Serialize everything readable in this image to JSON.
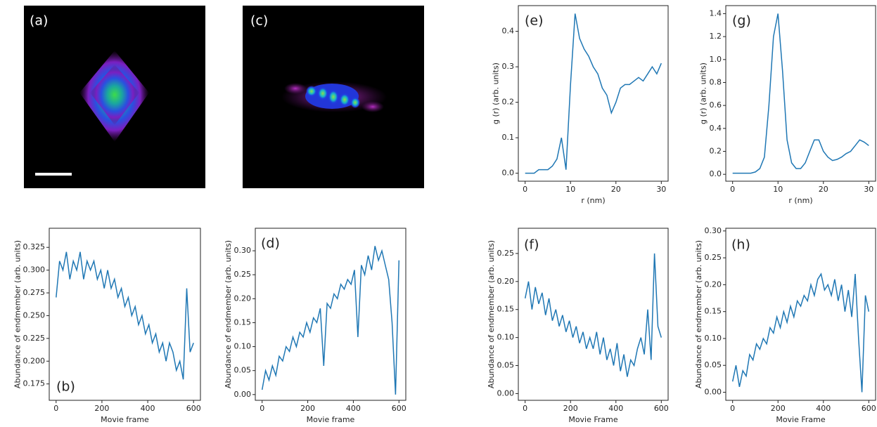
{
  "chart_data": [
    {
      "type": "image",
      "label": "(a)"
    },
    {
      "type": "image",
      "label": "(c)"
    },
    {
      "type": "line",
      "label": "(e)",
      "xlabel": "r (nm)",
      "ylabel": "g (r) (arb. units)",
      "color": "#1f77b4",
      "x": [
        0,
        1,
        2,
        3,
        4,
        5,
        6,
        7,
        8,
        9,
        10,
        11,
        12,
        13,
        14,
        15,
        16,
        17,
        18,
        19,
        20,
        21,
        22,
        23,
        24,
        25,
        26,
        27,
        28,
        29,
        30
      ],
      "values": [
        0,
        0,
        0,
        0.01,
        0.01,
        0.01,
        0.02,
        0.04,
        0.1,
        0.01,
        0.25,
        0.45,
        0.38,
        0.35,
        0.33,
        0.3,
        0.28,
        0.24,
        0.22,
        0.17,
        0.2,
        0.24,
        0.25,
        0.25,
        0.26,
        0.27,
        0.26,
        0.28,
        0.3,
        0.28,
        0.31
      ],
      "xlim": [
        -1.5,
        31.5
      ],
      "xticks": [
        0,
        10,
        20,
        30
      ],
      "ylim": [
        -0.0225,
        0.4725
      ],
      "yticks": [
        {
          "value": 0,
          "label": "0.0"
        },
        0.1,
        0.2,
        0.3,
        0.4
      ]
    },
    {
      "type": "line",
      "label": "(g)",
      "xlabel": "r (nm)",
      "ylabel": "g (r) (arb. units)",
      "color": "#1f77b4",
      "x": [
        0,
        1,
        2,
        3,
        4,
        5,
        6,
        7,
        8,
        9,
        10,
        11,
        12,
        13,
        14,
        15,
        16,
        17,
        18,
        19,
        20,
        21,
        22,
        23,
        24,
        25,
        26,
        27,
        28,
        29,
        30
      ],
      "values": [
        0.01,
        0.01,
        0.01,
        0.01,
        0.01,
        0.02,
        0.05,
        0.15,
        0.6,
        1.2,
        1.4,
        0.9,
        0.3,
        0.1,
        0.05,
        0.05,
        0.1,
        0.2,
        0.3,
        0.3,
        0.2,
        0.15,
        0.12,
        0.13,
        0.15,
        0.18,
        0.2,
        0.25,
        0.3,
        0.28,
        0.25
      ],
      "xlim": [
        -1.5,
        31.5
      ],
      "xticks": [
        0,
        10,
        20,
        30
      ],
      "ylim": [
        -0.06,
        1.47
      ],
      "yticks": [
        {
          "value": 0,
          "label": "0.0"
        },
        0.2,
        0.4,
        0.6,
        0.8,
        {
          "value": 1,
          "label": "1.0"
        },
        1.2,
        1.4
      ]
    },
    {
      "type": "line",
      "label": "(b)",
      "xlabel": "Movie frame",
      "ylabel": "Abundance of endmember (arb. units)",
      "color": "#1f77b4",
      "x": [
        0,
        15,
        30,
        45,
        60,
        75,
        90,
        105,
        120,
        135,
        150,
        165,
        180,
        195,
        210,
        225,
        240,
        255,
        270,
        285,
        300,
        315,
        330,
        345,
        360,
        375,
        390,
        405,
        420,
        435,
        450,
        465,
        480,
        495,
        510,
        525,
        540,
        555,
        570,
        585,
        600
      ],
      "values": [
        0.27,
        0.31,
        0.3,
        0.32,
        0.29,
        0.31,
        0.3,
        0.32,
        0.29,
        0.31,
        0.3,
        0.31,
        0.29,
        0.3,
        0.28,
        0.3,
        0.28,
        0.29,
        0.27,
        0.28,
        0.26,
        0.27,
        0.25,
        0.26,
        0.24,
        0.25,
        0.23,
        0.24,
        0.22,
        0.23,
        0.21,
        0.22,
        0.2,
        0.22,
        0.21,
        0.19,
        0.2,
        0.18,
        0.28,
        0.21,
        0.22
      ],
      "xlim": [
        -30,
        630
      ],
      "xticks": [
        0,
        200,
        400,
        600
      ],
      "ylim": [
        0.157,
        0.346
      ],
      "yticks": [
        0.175,
        {
          "value": 0.2,
          "label": "0.200"
        },
        0.225,
        {
          "value": 0.25,
          "label": "0.250"
        },
        0.275,
        {
          "value": 0.3,
          "label": "0.300"
        },
        0.325
      ]
    },
    {
      "type": "line",
      "label": "(d)",
      "xlabel": "Movie frame",
      "ylabel": "Abundance of endmember (arb. units)",
      "color": "#1f77b4",
      "x": [
        0,
        15,
        30,
        45,
        60,
        75,
        90,
        105,
        120,
        135,
        150,
        165,
        180,
        195,
        210,
        225,
        240,
        255,
        270,
        285,
        300,
        315,
        330,
        345,
        360,
        375,
        390,
        405,
        420,
        435,
        450,
        465,
        480,
        495,
        510,
        525,
        540,
        555,
        570,
        585,
        600
      ],
      "values": [
        0.01,
        0.05,
        0.03,
        0.06,
        0.04,
        0.08,
        0.07,
        0.1,
        0.09,
        0.12,
        0.1,
        0.13,
        0.12,
        0.15,
        0.13,
        0.16,
        0.15,
        0.18,
        0.06,
        0.19,
        0.18,
        0.21,
        0.2,
        0.23,
        0.22,
        0.24,
        0.23,
        0.26,
        0.12,
        0.27,
        0.25,
        0.29,
        0.26,
        0.31,
        0.28,
        0.3,
        0.27,
        0.24,
        0.15,
        0.0,
        0.28
      ],
      "xlim": [
        -30,
        630
      ],
      "xticks": [
        0,
        200,
        400,
        600
      ],
      "ylim": [
        -0.012,
        0.347
      ],
      "yticks": [
        {
          "value": 0,
          "label": "0.00"
        },
        0.05,
        {
          "value": 0.1,
          "label": "0.10"
        },
        0.15,
        {
          "value": 0.2,
          "label": "0.20"
        },
        0.25,
        {
          "value": 0.3,
          "label": "0.30"
        }
      ]
    },
    {
      "type": "line",
      "label": "(f)",
      "xlabel": "Movie Frame",
      "ylabel": "Abundance of endmember (arb. units)",
      "color": "#1f77b4",
      "x": [
        0,
        15,
        30,
        45,
        60,
        75,
        90,
        105,
        120,
        135,
        150,
        165,
        180,
        195,
        210,
        225,
        240,
        255,
        270,
        285,
        300,
        315,
        330,
        345,
        360,
        375,
        390,
        405,
        420,
        435,
        450,
        465,
        480,
        495,
        510,
        525,
        540,
        555,
        570,
        585,
        600
      ],
      "values": [
        0.17,
        0.2,
        0.15,
        0.19,
        0.16,
        0.18,
        0.14,
        0.17,
        0.13,
        0.15,
        0.12,
        0.14,
        0.11,
        0.13,
        0.1,
        0.12,
        0.09,
        0.11,
        0.08,
        0.1,
        0.08,
        0.11,
        0.07,
        0.1,
        0.06,
        0.08,
        0.05,
        0.09,
        0.04,
        0.07,
        0.03,
        0.06,
        0.05,
        0.08,
        0.1,
        0.07,
        0.15,
        0.06,
        0.25,
        0.12,
        0.1
      ],
      "xlim": [
        -30,
        630
      ],
      "xticks": [
        0,
        200,
        400,
        600
      ],
      "ylim": [
        -0.012,
        0.295
      ],
      "yticks": [
        {
          "value": 0,
          "label": "0.00"
        },
        0.05,
        {
          "value": 0.1,
          "label": "0.10"
        },
        0.15,
        {
          "value": 0.2,
          "label": "0.20"
        },
        0.25
      ]
    },
    {
      "type": "line",
      "label": "(h)",
      "xlabel": "Movie Frame",
      "ylabel": "Abundance of endmember (arb. units)",
      "color": "#1f77b4",
      "x": [
        0,
        15,
        30,
        45,
        60,
        75,
        90,
        105,
        120,
        135,
        150,
        165,
        180,
        195,
        210,
        225,
        240,
        255,
        270,
        285,
        300,
        315,
        330,
        345,
        360,
        375,
        390,
        405,
        420,
        435,
        450,
        465,
        480,
        495,
        510,
        525,
        540,
        555,
        570,
        585,
        600
      ],
      "values": [
        0.02,
        0.05,
        0.01,
        0.04,
        0.03,
        0.07,
        0.06,
        0.09,
        0.08,
        0.1,
        0.09,
        0.12,
        0.11,
        0.14,
        0.12,
        0.15,
        0.13,
        0.16,
        0.14,
        0.17,
        0.16,
        0.18,
        0.17,
        0.2,
        0.18,
        0.21,
        0.22,
        0.19,
        0.2,
        0.18,
        0.21,
        0.17,
        0.2,
        0.15,
        0.19,
        0.14,
        0.22,
        0.1,
        0.0,
        0.18,
        0.15
      ],
      "xlim": [
        -30,
        630
      ],
      "xticks": [
        0,
        200,
        400,
        600
      ],
      "ylim": [
        -0.015,
        0.305
      ],
      "yticks": [
        {
          "value": 0,
          "label": "0.00"
        },
        0.05,
        {
          "value": 0.1,
          "label": "0.10"
        },
        0.15,
        {
          "value": 0.2,
          "label": "0.20"
        },
        0.25,
        {
          "value": 0.3,
          "label": "0.30"
        }
      ]
    }
  ]
}
